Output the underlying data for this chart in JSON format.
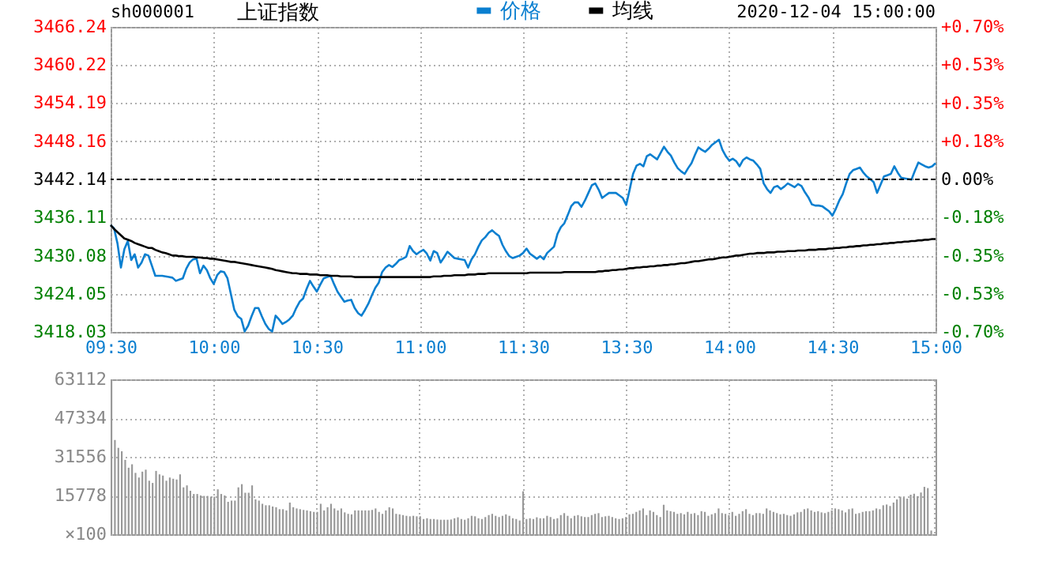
{
  "chart_data": [
    {
      "type": "line",
      "title": "上证指数",
      "subtitle": "sh000001",
      "annotations": [
        "2020-12-04 15:00:00"
      ],
      "legend": "top",
      "grid": true,
      "categories": [
        "09:30",
        null,
        null,
        null,
        null,
        null,
        null,
        null,
        null,
        null,
        null,
        null,
        null,
        null,
        null,
        null,
        null,
        null,
        null,
        null,
        null,
        null,
        null,
        null,
        null,
        null,
        null,
        null,
        null,
        null,
        "10:00",
        null,
        null,
        null,
        null,
        null,
        null,
        null,
        null,
        null,
        null,
        null,
        null,
        null,
        null,
        null,
        null,
        null,
        null,
        null,
        null,
        null,
        null,
        null,
        null,
        null,
        null,
        null,
        null,
        null,
        "10:30",
        null,
        null,
        null,
        null,
        null,
        null,
        null,
        null,
        null,
        null,
        null,
        null,
        null,
        null,
        null,
        null,
        null,
        null,
        null,
        null,
        null,
        null,
        null,
        null,
        null,
        null,
        null,
        null,
        null,
        "11:00",
        null,
        null,
        null,
        null,
        null,
        null,
        null,
        null,
        null,
        null,
        null,
        null,
        null,
        null,
        null,
        null,
        null,
        null,
        null,
        null,
        null,
        null,
        null,
        null,
        null,
        null,
        null,
        null,
        null,
        "11:30",
        null,
        null,
        null,
        null,
        null,
        null,
        null,
        null,
        null,
        null,
        null,
        null,
        null,
        null,
        null,
        null,
        null,
        null,
        null,
        null,
        null,
        null,
        null,
        null,
        null,
        null,
        null,
        null,
        null,
        "13:30",
        null,
        null,
        null,
        null,
        null,
        null,
        null,
        null,
        null,
        null,
        null,
        null,
        null,
        null,
        null,
        null,
        null,
        null,
        null,
        null,
        null,
        null,
        null,
        null,
        null,
        null,
        null,
        null,
        null,
        "14:00",
        null,
        null,
        null,
        null,
        null,
        null,
        null,
        null,
        null,
        null,
        null,
        null,
        null,
        null,
        null,
        null,
        null,
        null,
        null,
        null,
        null,
        null,
        null,
        null,
        null,
        null,
        null,
        null,
        null,
        "14:30",
        null,
        null,
        null,
        null,
        null,
        null,
        null,
        null,
        null,
        null,
        null,
        null,
        null,
        null,
        null,
        null,
        null,
        null,
        null,
        null,
        null,
        null,
        null,
        null,
        null,
        null,
        null,
        null,
        null,
        "15:00"
      ],
      "ylim": [
        3418.03,
        3466.24
      ],
      "yticks": [
        3418.03,
        3424.05,
        3430.08,
        3436.11,
        3442.14,
        3448.16,
        3454.19,
        3460.22,
        3466.24
      ],
      "y2lim": [
        -0.7,
        0.7
      ],
      "y2ticks": [
        {
          "value": -0.7,
          "label": "-0.70%"
        },
        {
          "value": -0.525,
          "label": "-0.53%"
        },
        {
          "value": -0.35,
          "label": "-0.35%"
        },
        {
          "value": -0.175,
          "label": "-0.18%"
        },
        {
          "value": 0,
          "label": "0.00%"
        },
        {
          "value": 0.175,
          "label": "+0.18%"
        },
        {
          "value": 0.35,
          "label": "+0.35%"
        },
        {
          "value": 0.525,
          "label": "+0.53%"
        },
        {
          "value": 0.7,
          "label": "+0.70%"
        }
      ],
      "ref_lines": [
        {
          "axis": "y",
          "value": 3442.14,
          "color": "#000000",
          "line_style": "dashed"
        }
      ],
      "series": [
        {
          "name": "价格",
          "color": "#0a7fd0",
          "values": [
            3434.9,
            3434.4,
            3432.0,
            3428.2,
            3431.1,
            3432.4,
            3429.4,
            3430.3,
            3428.2,
            3429.0,
            3430.3,
            3430.1,
            3428.5,
            3426.9,
            3426.9,
            3426.9,
            3426.8,
            3426.7,
            3426.6,
            3426.1,
            3426.3,
            3426.5,
            3428.0,
            3429.0,
            3429.5,
            3429.6,
            3427.3,
            3428.5,
            3427.8,
            3426.5,
            3425.6,
            3427.0,
            3427.6,
            3427.5,
            3426.5,
            3424.0,
            3421.5,
            3420.5,
            3420.1,
            3418.1,
            3419.0,
            3420.5,
            3421.8,
            3421.8,
            3420.5,
            3419.3,
            3418.5,
            3418.1,
            3420.6,
            3420.0,
            3419.3,
            3419.6,
            3420.0,
            3420.6,
            3421.8,
            3422.8,
            3423.3,
            3424.8,
            3426.1,
            3425.2,
            3424.4,
            3425.5,
            3426.5,
            3426.7,
            3426.9,
            3425.6,
            3424.4,
            3423.6,
            3422.8,
            3423.0,
            3423.1,
            3421.8,
            3421.0,
            3420.6,
            3421.5,
            3422.5,
            3423.8,
            3425.0,
            3425.8,
            3427.5,
            3428.2,
            3428.6,
            3428.3,
            3428.8,
            3429.4,
            3429.6,
            3429.9,
            3431.6,
            3430.8,
            3430.3,
            3430.7,
            3431.0,
            3430.4,
            3429.3,
            3430.8,
            3430.5,
            3429.0,
            3429.8,
            3430.7,
            3430.2,
            3429.7,
            3429.6,
            3429.5,
            3429.4,
            3428.2,
            3429.5,
            3430.3,
            3431.5,
            3432.5,
            3433.0,
            3433.7,
            3434.1,
            3433.6,
            3433.2,
            3431.8,
            3430.8,
            3430.0,
            3429.7,
            3429.9,
            3430.1,
            3430.5,
            3431.2,
            3430.4,
            3430.0,
            3429.6,
            3430.0,
            3429.5,
            3430.5,
            3431.0,
            3431.5,
            3433.5,
            3434.6,
            3435.2,
            3436.5,
            3437.9,
            3438.5,
            3438.5,
            3437.8,
            3438.8,
            3440.0,
            3441.2,
            3441.5,
            3440.5,
            3439.2,
            3439.6,
            3440.0,
            3440.0,
            3440.0,
            3439.6,
            3439.2,
            3438.1,
            3440.5,
            3443.0,
            3444.3,
            3444.6,
            3444.2,
            3445.8,
            3446.1,
            3445.7,
            3445.3,
            3446.3,
            3447.3,
            3446.5,
            3445.9,
            3444.8,
            3443.9,
            3443.4,
            3443.0,
            3443.9,
            3444.7,
            3446.0,
            3447.2,
            3446.8,
            3446.5,
            3447.0,
            3447.6,
            3448.0,
            3448.4,
            3446.8,
            3445.8,
            3445.1,
            3445.4,
            3445.0,
            3444.2,
            3445.2,
            3445.6,
            3445.3,
            3445.1,
            3444.5,
            3443.8,
            3441.5,
            3440.6,
            3440.0,
            3440.9,
            3441.1,
            3440.6,
            3441.0,
            3441.5,
            3441.2,
            3440.9,
            3441.4,
            3441.1,
            3440.1,
            3439.3,
            3438.2,
            3438.0,
            3438.0,
            3437.9,
            3437.5,
            3437.1,
            3436.4,
            3437.5,
            3438.8,
            3439.8,
            3441.5,
            3443.0,
            3443.6,
            3443.8,
            3444.0,
            3443.2,
            3442.6,
            3442.2,
            3441.7,
            3440.0,
            3441.3,
            3442.6,
            3442.8,
            3443.0,
            3444.2,
            3443.2,
            3442.4,
            3442.3,
            3442.2,
            3442.1,
            3443.5,
            3444.8,
            3444.5,
            3444.2,
            3444.0,
            3444.2,
            3444.7
          ]
        },
        {
          "name": "均线",
          "color": "#000000",
          "values": [
            3434.9,
            3434.3,
            3433.8,
            3433.3,
            3432.8,
            3432.6,
            3432.4,
            3432.1,
            3431.9,
            3431.7,
            3431.5,
            3431.3,
            3431.3,
            3431.0,
            3430.8,
            3430.6,
            3430.5,
            3430.3,
            3430.1,
            3430.1,
            3430.0,
            3430.0,
            3429.9,
            3429.9,
            3429.9,
            3429.8,
            3429.8,
            3429.7,
            3429.7,
            3429.6,
            3429.6,
            3429.5,
            3429.4,
            3429.3,
            3429.2,
            3429.1,
            3429.1,
            3429.0,
            3428.9,
            3428.8,
            3428.7,
            3428.6,
            3428.5,
            3428.4,
            3428.3,
            3428.2,
            3428.1,
            3428.0,
            3427.8,
            3427.7,
            3427.6,
            3427.5,
            3427.4,
            3427.3,
            3427.3,
            3427.2,
            3427.2,
            3427.2,
            3427.1,
            3427.1,
            3427.1,
            3427.0,
            3427.0,
            3427.0,
            3426.9,
            3426.9,
            3426.9,
            3426.8,
            3426.8,
            3426.8,
            3426.8,
            3426.7,
            3426.7,
            3426.7,
            3426.7,
            3426.7,
            3426.7,
            3426.7,
            3426.7,
            3426.7,
            3426.7,
            3426.7,
            3426.7,
            3426.7,
            3426.7,
            3426.7,
            3426.7,
            3426.7,
            3426.7,
            3426.7,
            3426.7,
            3426.7,
            3426.7,
            3426.7,
            3426.8,
            3426.8,
            3426.8,
            3426.9,
            3426.9,
            3426.9,
            3427.0,
            3427.0,
            3427.0,
            3427.0,
            3427.1,
            3427.1,
            3427.1,
            3427.2,
            3427.2,
            3427.2,
            3427.3,
            3427.3,
            3427.3,
            3427.3,
            3427.3,
            3427.3,
            3427.3,
            3427.3,
            3427.3,
            3427.3,
            3427.3,
            3427.3,
            3427.4,
            3427.4,
            3427.4,
            3427.4,
            3427.4,
            3427.4,
            3427.4,
            3427.4,
            3427.4,
            3427.4,
            3427.5,
            3427.5,
            3427.5,
            3427.5,
            3427.5,
            3427.5,
            3427.5,
            3427.5,
            3427.5,
            3427.5,
            3427.6,
            3427.6,
            3427.7,
            3427.7,
            3427.8,
            3427.8,
            3427.9,
            3427.9,
            3428.0,
            3428.1,
            3428.1,
            3428.2,
            3428.2,
            3428.3,
            3428.3,
            3428.4,
            3428.4,
            3428.5,
            3428.5,
            3428.6,
            3428.6,
            3428.7,
            3428.7,
            3428.8,
            3428.9,
            3428.9,
            3429.0,
            3429.1,
            3429.2,
            3429.2,
            3429.3,
            3429.4,
            3429.5,
            3429.5,
            3429.6,
            3429.7,
            3429.8,
            3429.8,
            3429.9,
            3430.0,
            3430.1,
            3430.1,
            3430.2,
            3430.3,
            3430.4,
            3430.4,
            3430.5,
            3430.5,
            3430.5,
            3430.6,
            3430.6,
            3430.6,
            3430.7,
            3430.7,
            3430.7,
            3430.8,
            3430.8,
            3430.8,
            3430.9,
            3430.9,
            3430.9,
            3431.0,
            3431.0,
            3431.0,
            3431.1,
            3431.1,
            3431.1,
            3431.2,
            3431.2,
            3431.3,
            3431.3,
            3431.4,
            3431.4,
            3431.5,
            3431.5,
            3431.6,
            3431.6,
            3431.7,
            3431.7,
            3431.8,
            3431.8,
            3431.9,
            3431.9,
            3432.0,
            3432.0,
            3432.1,
            3432.1,
            3432.2,
            3432.2,
            3432.3,
            3432.3,
            3432.4,
            3432.4,
            3432.5,
            3432.5,
            3432.6,
            3432.6,
            3432.7,
            3432.7
          ]
        }
      ]
    },
    {
      "type": "bar",
      "color": "#999999",
      "grid": true,
      "tick_labels": "y",
      "ylabel": "×100",
      "categories": [
        null,
        null,
        null,
        null,
        null,
        null,
        null,
        null,
        null,
        null,
        null,
        null,
        null,
        null,
        null,
        null,
        null,
        null,
        null,
        null,
        null,
        null,
        null,
        null,
        null,
        null,
        null,
        null,
        null,
        null,
        null,
        null,
        null,
        null,
        null,
        null,
        null,
        null,
        null,
        null,
        null,
        null,
        null,
        null,
        null,
        null,
        null,
        null,
        null,
        null,
        null,
        null,
        null,
        null,
        null,
        null,
        null,
        null,
        null,
        null,
        null,
        null,
        null,
        null,
        null,
        null,
        null,
        null,
        null,
        null,
        null,
        null,
        null,
        null,
        null,
        null,
        null,
        null,
        null,
        null,
        null,
        null,
        null,
        null,
        null,
        null,
        null,
        null,
        null,
        null,
        null,
        null,
        null,
        null,
        null,
        null,
        null,
        null,
        null,
        null,
        null,
        null,
        null,
        null,
        null,
        null,
        null,
        null,
        null,
        null,
        null,
        null,
        null,
        null,
        null,
        null,
        null,
        null,
        null,
        null,
        null,
        null,
        null,
        null,
        null,
        null,
        null,
        null,
        null,
        null,
        null,
        null,
        null,
        null,
        null,
        null,
        null,
        null,
        null,
        null,
        null,
        null,
        null,
        null,
        null,
        null,
        null,
        null,
        null,
        null,
        null,
        null,
        null,
        null,
        null,
        null,
        null,
        null,
        null,
        null,
        null,
        null,
        null,
        null,
        null,
        null,
        null,
        null,
        null,
        null,
        null,
        null,
        null,
        null,
        null,
        null,
        null,
        null,
        null,
        null,
        null,
        null,
        null,
        null,
        null,
        null,
        null,
        null,
        null,
        null,
        null,
        null,
        null,
        null,
        null,
        null,
        null,
        null,
        null,
        null,
        null,
        null,
        null,
        null,
        null,
        null,
        null,
        null,
        null,
        null,
        null,
        null,
        null,
        null,
        null,
        null,
        null,
        null,
        null,
        null,
        null,
        null,
        null,
        null,
        null,
        null,
        null,
        null,
        null,
        null,
        null,
        null,
        null,
        null,
        null,
        null,
        null,
        null,
        null,
        null,
        null
      ],
      "ylim": [
        0,
        63112
      ],
      "yticks": [
        {
          "value": 0,
          "label": null
        },
        15778,
        31556,
        47334,
        63112
      ],
      "values": [
        63000,
        38400,
        35200,
        33800,
        30300,
        27100,
        28500,
        25000,
        23100,
        25500,
        26300,
        21800,
        20900,
        25800,
        24400,
        23900,
        21800,
        23100,
        22600,
        22300,
        24400,
        19100,
        19900,
        17700,
        16400,
        16400,
        15800,
        15600,
        15600,
        15300,
        15300,
        18300,
        16400,
        15800,
        13200,
        13700,
        13700,
        19100,
        20400,
        16900,
        16900,
        19900,
        14200,
        13700,
        12400,
        11800,
        11800,
        11300,
        11000,
        10200,
        10200,
        9700,
        12900,
        11000,
        10500,
        10200,
        9900,
        9700,
        9400,
        9100,
        9100,
        12400,
        9700,
        11000,
        12400,
        10500,
        9700,
        10500,
        8900,
        8300,
        8100,
        9700,
        9700,
        9700,
        9700,
        9700,
        9900,
        10500,
        9100,
        8300,
        9700,
        11000,
        10500,
        8300,
        8100,
        7800,
        7500,
        7300,
        7500,
        7300,
        7300,
        6200,
        6500,
        6200,
        6200,
        6000,
        5900,
        5900,
        5900,
        6000,
        6500,
        6900,
        6200,
        5900,
        6500,
        7500,
        7300,
        6500,
        6200,
        7000,
        7800,
        8300,
        7500,
        7000,
        7500,
        8100,
        7500,
        6500,
        6200,
        5600,
        17500,
        6200,
        6500,
        6200,
        6900,
        6500,
        6500,
        7500,
        7000,
        6200,
        6500,
        7800,
        8600,
        7500,
        6500,
        7500,
        7800,
        7300,
        7000,
        7000,
        7800,
        8300,
        8600,
        7000,
        7300,
        7500,
        7000,
        6500,
        6200,
        6500,
        7000,
        8100,
        8300,
        9100,
        9700,
        10500,
        7800,
        9700,
        9100,
        7800,
        7000,
        12000,
        9700,
        9400,
        9100,
        8300,
        8600,
        8100,
        9100,
        8300,
        8600,
        7800,
        9400,
        9100,
        7500,
        8100,
        8600,
        10500,
        8600,
        8300,
        7800,
        9100,
        7500,
        8300,
        9400,
        10200,
        8300,
        7800,
        8600,
        8600,
        8300,
        10500,
        9700,
        9100,
        8600,
        8100,
        8300,
        7800,
        7500,
        8100,
        8900,
        9100,
        10200,
        10500,
        9700,
        9100,
        9400,
        8900,
        8600,
        9100,
        9700,
        10500,
        10200,
        9700,
        8900,
        10200,
        10500,
        8300,
        8600,
        9100,
        9400,
        9400,
        9700,
        10500,
        10200,
        11800,
        12100,
        11500,
        12900,
        14200,
        15300,
        15000,
        14500,
        16100,
        16500,
        15500,
        17000,
        19300,
        18800,
        1500,
        null
      ]
    }
  ]
}
